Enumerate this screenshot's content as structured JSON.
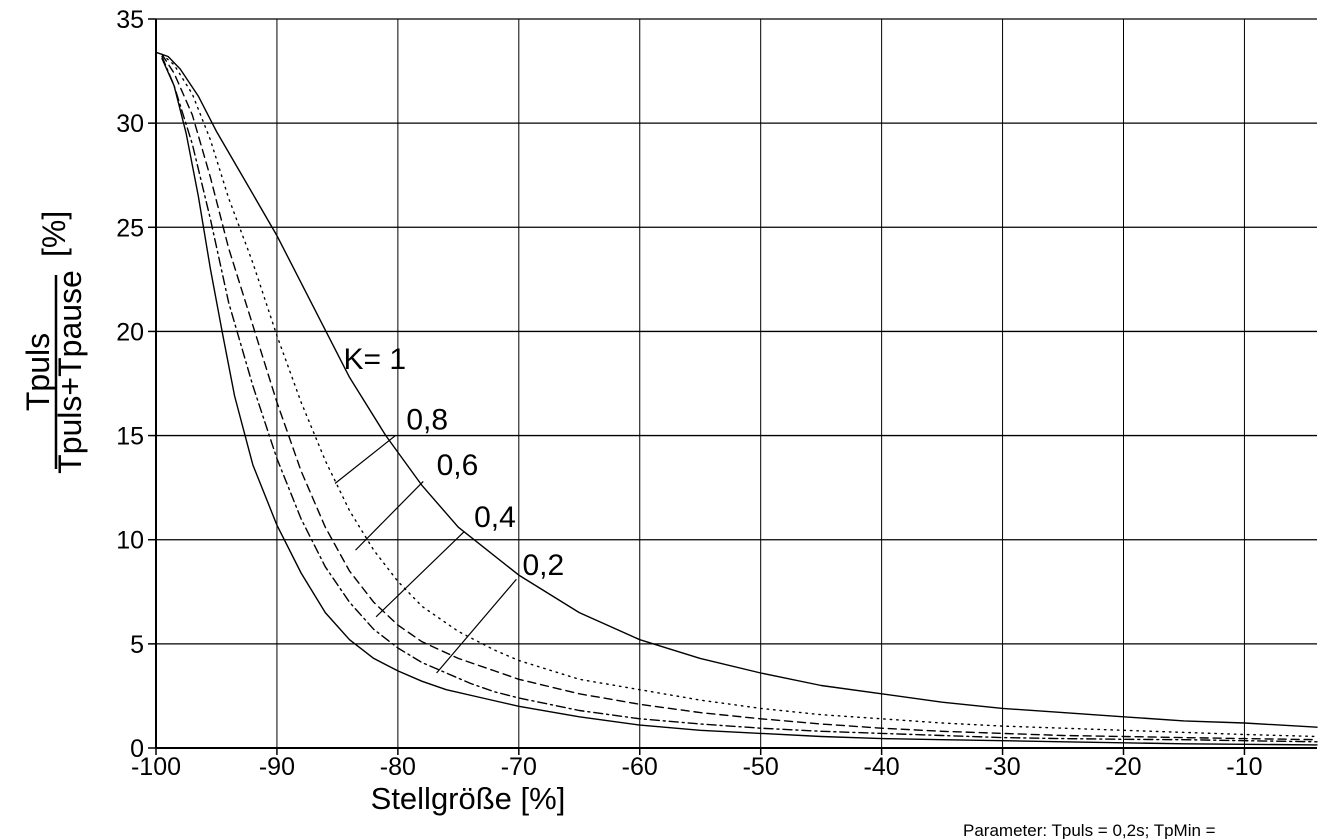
{
  "chart_data": {
    "type": "line",
    "xlabel": "Stellgröße [%]",
    "ylabel": {
      "numerator": "Tpuls",
      "denominator": "Tpuls+Tpause",
      "unit": "[%]"
    },
    "xlim": [
      -100,
      -4
    ],
    "ylim": [
      0,
      35
    ],
    "x_ticks": [
      -100,
      -90,
      -80,
      -70,
      -60,
      -50,
      -40,
      -30,
      -20,
      -10
    ],
    "x_tick_labels": [
      "-100",
      "-90",
      "-80",
      "-70",
      "-60",
      "-50",
      "-40",
      "-30",
      "-20",
      "-10"
    ],
    "y_ticks": [
      0,
      5,
      10,
      15,
      20,
      25,
      30,
      35
    ],
    "y_tick_labels": [
      "0",
      "5",
      "10",
      "15",
      "20",
      "25",
      "30",
      "35"
    ],
    "grid": true,
    "footnote": "Parameter: Tpuls = 0,2s; TpMin =",
    "series": [
      {
        "name": "K= 1",
        "style": "solid",
        "x": [
          -100,
          -99,
          -98,
          -96.5,
          -95,
          -93,
          -90,
          -87,
          -84,
          -81,
          -78,
          -75,
          -70,
          -65,
          -60,
          -55,
          -50,
          -45,
          -40,
          -35,
          -30,
          -25,
          -20,
          -15,
          -10,
          -4
        ],
        "y": [
          33.4,
          33.2,
          32.6,
          31.3,
          29.6,
          27.6,
          24.6,
          21.2,
          17.8,
          15.0,
          12.6,
          10.6,
          8.3,
          6.5,
          5.2,
          4.3,
          3.6,
          3.0,
          2.6,
          2.2,
          1.9,
          1.7,
          1.5,
          1.3,
          1.2,
          1.0
        ]
      },
      {
        "name": "0,8",
        "style": "dotted",
        "x": [
          -99.5,
          -98.5,
          -97,
          -95.5,
          -94,
          -92,
          -90,
          -88,
          -86,
          -84,
          -82,
          -80,
          -78,
          -75,
          -72,
          -70,
          -65,
          -60,
          -55,
          -50,
          -45,
          -40,
          -35,
          -30,
          -25,
          -20,
          -15,
          -10,
          -4
        ],
        "y": [
          33.3,
          32.8,
          31.4,
          29.2,
          26.4,
          23.3,
          19.8,
          16.6,
          13.8,
          11.4,
          9.5,
          8.0,
          6.8,
          5.6,
          4.7,
          4.2,
          3.3,
          2.8,
          2.3,
          1.9,
          1.6,
          1.4,
          1.2,
          1.05,
          0.95,
          0.85,
          0.75,
          0.65,
          0.55
        ]
      },
      {
        "name": "0,6",
        "style": "dashed",
        "x": [
          -99.5,
          -98.5,
          -97,
          -95.5,
          -94,
          -92,
          -90,
          -88,
          -86,
          -84,
          -82,
          -80,
          -78,
          -75,
          -72,
          -70,
          -65,
          -60,
          -55,
          -50,
          -45,
          -40,
          -35,
          -30,
          -25,
          -20,
          -15,
          -10,
          -4
        ],
        "y": [
          33.3,
          32.4,
          30.4,
          27.4,
          24.0,
          20.3,
          16.6,
          13.3,
          10.6,
          8.5,
          7.0,
          5.9,
          5.1,
          4.3,
          3.7,
          3.3,
          2.6,
          2.1,
          1.7,
          1.4,
          1.15,
          0.95,
          0.8,
          0.7,
          0.6,
          0.55,
          0.5,
          0.45,
          0.4
        ]
      },
      {
        "name": "0,4",
        "style": "dashdot",
        "x": [
          -99.5,
          -98.5,
          -97,
          -95.5,
          -94,
          -92,
          -90,
          -88,
          -86,
          -84,
          -82,
          -80,
          -78,
          -76,
          -74,
          -72,
          -70,
          -65,
          -60,
          -55,
          -50,
          -45,
          -40,
          -35,
          -30,
          -25,
          -20,
          -15,
          -10,
          -4
        ],
        "y": [
          33.2,
          31.8,
          29.0,
          25.4,
          21.4,
          17.4,
          13.9,
          11.0,
          8.7,
          7.0,
          5.7,
          4.8,
          4.1,
          3.6,
          3.1,
          2.7,
          2.4,
          1.8,
          1.4,
          1.15,
          0.95,
          0.8,
          0.7,
          0.6,
          0.5,
          0.45,
          0.42,
          0.4,
          0.35,
          0.3
        ]
      },
      {
        "name": "0,2",
        "style": "solid",
        "x": [
          -99.5,
          -98.5,
          -97.5,
          -96.5,
          -95.5,
          -94.5,
          -93.5,
          -92,
          -90,
          -88,
          -86,
          -84,
          -82,
          -80,
          -78,
          -76,
          -73,
          -70,
          -65,
          -60,
          -55,
          -50,
          -45,
          -40,
          -35,
          -30,
          -25,
          -20,
          -15,
          -10,
          -4
        ],
        "y": [
          33.1,
          31.8,
          29.5,
          26.5,
          23.0,
          19.9,
          16.9,
          13.6,
          10.7,
          8.4,
          6.5,
          5.2,
          4.3,
          3.7,
          3.2,
          2.8,
          2.4,
          2.0,
          1.5,
          1.1,
          0.85,
          0.7,
          0.55,
          0.45,
          0.4,
          0.35,
          0.3,
          0.25,
          0.2,
          0.18,
          0.15
        ]
      }
    ],
    "annotations": [
      {
        "text": "K= 1",
        "series": "K= 1",
        "label_at": [
          -84.5,
          18.2
        ],
        "leader": null
      },
      {
        "text": "0,8",
        "series": "0,8",
        "label_at": [
          -79.3,
          15.3
        ],
        "leader": [
          [
            -80.2,
            15.0
          ],
          [
            -85.2,
            12.7
          ]
        ]
      },
      {
        "text": "0,6",
        "series": "0,6",
        "label_at": [
          -76.8,
          13.1
        ],
        "leader": [
          [
            -77.9,
            12.8
          ],
          [
            -83.5,
            9.5
          ]
        ]
      },
      {
        "text": "0,4",
        "series": "0,4",
        "label_at": [
          -73.7,
          10.6
        ],
        "leader": [
          [
            -74.5,
            10.4
          ],
          [
            -81.8,
            6.3
          ]
        ]
      },
      {
        "text": "0,2",
        "series": "0,2",
        "label_at": [
          -69.7,
          8.3
        ],
        "leader": [
          [
            -70.2,
            8.1
          ],
          [
            -76.8,
            3.6
          ]
        ]
      }
    ]
  }
}
